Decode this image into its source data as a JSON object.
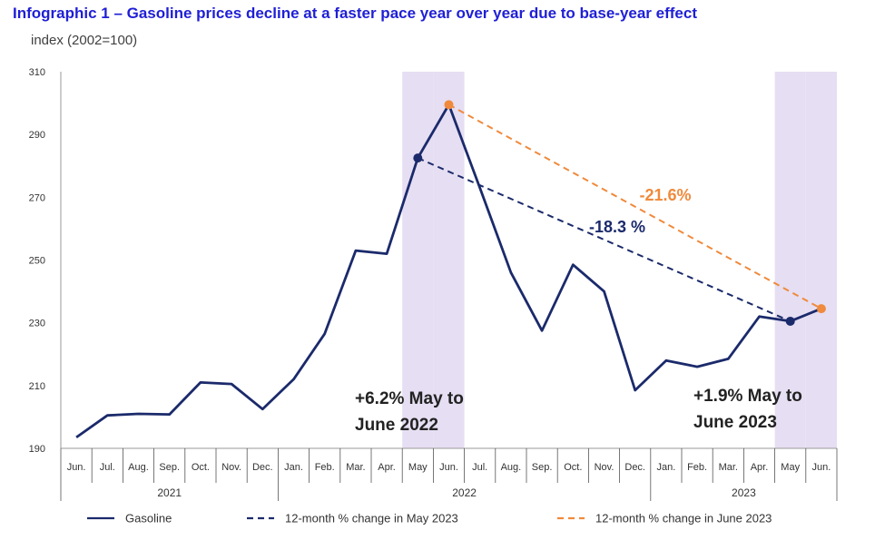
{
  "title": "Infographic 1 –  Gasoline prices decline at a faster pace year over year due to base-year effect",
  "y_unit_label": "index (2002=100)",
  "colors": {
    "gasoline": "#1b2a6b",
    "may_change": "#1b2a6b",
    "june_change": "#f08a3c",
    "highlight": "#e6def2",
    "title": "#1f1fd6"
  },
  "chart_data": {
    "type": "line",
    "categories": [
      "Jun.",
      "Jul.",
      "Aug.",
      "Sep.",
      "Oct.",
      "Nov.",
      "Dec.",
      "Jan.",
      "Feb.",
      "Mar.",
      "Apr.",
      "May",
      "Jun.",
      "Jul.",
      "Aug.",
      "Sep.",
      "Oct.",
      "Nov.",
      "Dec.",
      "Jan.",
      "Feb.",
      "Mar.",
      "Apr.",
      "May",
      "Jun."
    ],
    "years": [
      {
        "label": "2021",
        "start": 0,
        "end": 6
      },
      {
        "label": "2022",
        "start": 7,
        "end": 18
      },
      {
        "label": "2023",
        "start": 19,
        "end": 24
      }
    ],
    "ylim": [
      190,
      310
    ],
    "yticks": [
      190,
      210,
      230,
      250,
      270,
      290,
      310
    ],
    "series": [
      {
        "name": "Gasoline",
        "style": "solid",
        "values": [
          193.5,
          200.5,
          201,
          200.8,
          211,
          210.5,
          202.5,
          212,
          226.5,
          253,
          252,
          282.5,
          299.5,
          273,
          246,
          227.5,
          248.5,
          240,
          208.5,
          218,
          216,
          218.5,
          232,
          230.5,
          234.5
        ]
      }
    ],
    "change_lines": [
      {
        "name": "12-month % change in May 2023",
        "from_index": 11,
        "to_index": 23,
        "label": "-18.3 %",
        "style": "dashed"
      },
      {
        "name": "12-month % change in June 2023",
        "from_index": 12,
        "to_index": 24,
        "label": "-21.6%",
        "style": "dashed"
      }
    ],
    "highlight_indices": [
      11,
      12,
      23,
      24
    ],
    "annotations": [
      {
        "lines": [
          "+6.2% May to",
          "June 2022"
        ]
      },
      {
        "lines": [
          "+1.9% May to",
          "June 2023"
        ]
      }
    ],
    "legend": [
      "Gasoline",
      "12-month % change in May 2023",
      "12-month % change in June 2023"
    ],
    "legend_position": "bottom",
    "grid": false
  }
}
